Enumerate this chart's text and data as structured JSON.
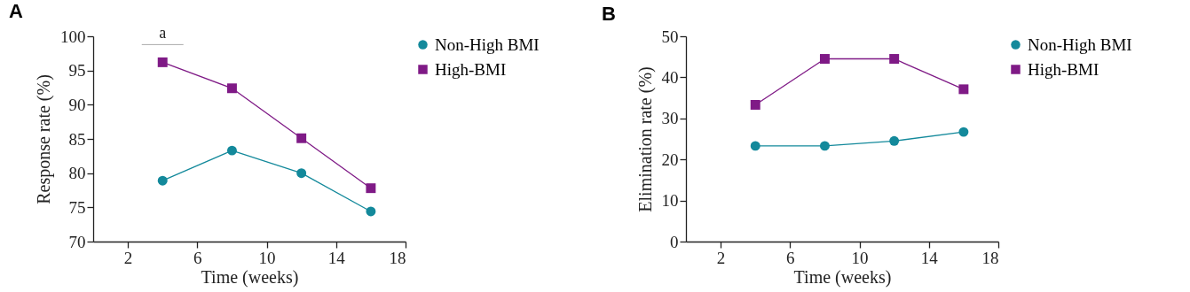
{
  "chart_data": [
    {
      "type": "line",
      "title": "A",
      "xlabel": "Time (weeks)",
      "ylabel": "Response rate (%)",
      "xlim": [
        0,
        18
      ],
      "xticks": [
        2,
        6,
        10,
        14,
        18
      ],
      "ylim": [
        70,
        100
      ],
      "yticks": [
        70,
        75,
        80,
        85,
        90,
        95,
        100
      ],
      "grid": false,
      "legend": "top right",
      "annotations": [
        {
          "text": "a",
          "x": 4,
          "y": 96.2
        }
      ],
      "x": [
        4,
        8,
        12,
        16
      ],
      "series": [
        {
          "name": "Non-High BMI",
          "color": "#13899b",
          "marker": "circle",
          "values": [
            78.9,
            83.3,
            80.0,
            74.4
          ]
        },
        {
          "name": "High-BMI",
          "color": "#7f1a86",
          "marker": "square",
          "values": [
            96.2,
            92.4,
            85.1,
            77.8
          ]
        }
      ]
    },
    {
      "type": "line",
      "title": "B",
      "xlabel": "Time (weeks)",
      "ylabel": "Elimination rate (%)",
      "xlim": [
        0,
        18
      ],
      "xticks": [
        2,
        6,
        10,
        14,
        18
      ],
      "ylim": [
        0,
        50
      ],
      "yticks": [
        0,
        10,
        20,
        30,
        40,
        50
      ],
      "grid": false,
      "legend": "top right",
      "x": [
        4,
        8,
        12,
        16
      ],
      "series": [
        {
          "name": "Non-High BMI",
          "color": "#13899b",
          "marker": "circle",
          "values": [
            23.3,
            23.3,
            24.5,
            26.7
          ]
        },
        {
          "name": "High-BMI",
          "color": "#7f1a86",
          "marker": "square",
          "values": [
            33.3,
            44.5,
            44.5,
            37.1
          ]
        }
      ]
    }
  ]
}
